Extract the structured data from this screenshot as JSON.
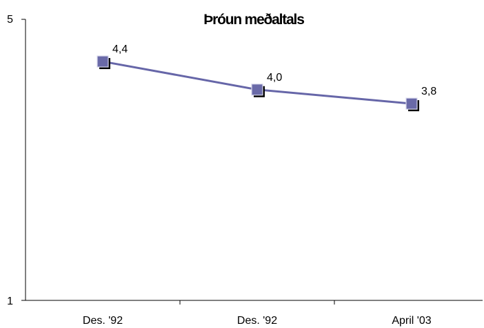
{
  "chart_data": {
    "type": "line",
    "title": "Þróun meðaltals",
    "xlabel": "",
    "ylabel": "",
    "categories": [
      "Des. '92",
      "Des. '92",
      "April '03"
    ],
    "series": [
      {
        "values": [
          4.4,
          4.0,
          3.8
        ],
        "data_labels": [
          "4,4",
          "4,0",
          "3,8"
        ]
      }
    ],
    "ylim": [
      1,
      5
    ],
    "y_tick_labels": [
      "1",
      "5"
    ],
    "grid": false,
    "legend": "none",
    "colors": {
      "line": "#6666a8",
      "marker": "#6a6aa8",
      "marker_shadow": "#000000"
    }
  }
}
